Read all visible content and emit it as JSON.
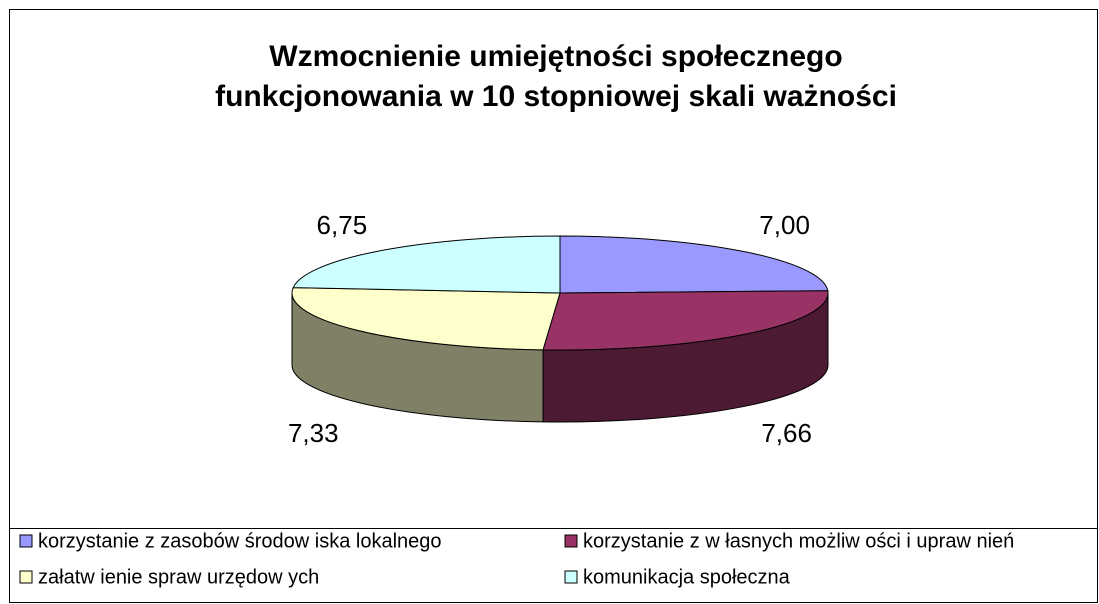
{
  "chart_data": {
    "type": "pie3d",
    "title": [
      "Wzmocnienie umiejętności społecznego",
      "funkcjonowania w 10 stopniowej skali ważności"
    ],
    "categories": [
      "korzystanie z zasobów  środow iska lokalnego",
      "korzystanie z w łasnych możliw ości i upraw nień",
      "załatw ienie spraw  urzędow ych",
      "komunikacja społeczna"
    ],
    "values": [
      7.0,
      7.66,
      7.33,
      6.75
    ],
    "value_labels": [
      "7,00",
      "7,66",
      "7,33",
      "6,75"
    ],
    "colors": [
      "#9999ff",
      "#993366",
      "#ffffcc",
      "#ccffff"
    ],
    "legend": "bottom"
  }
}
